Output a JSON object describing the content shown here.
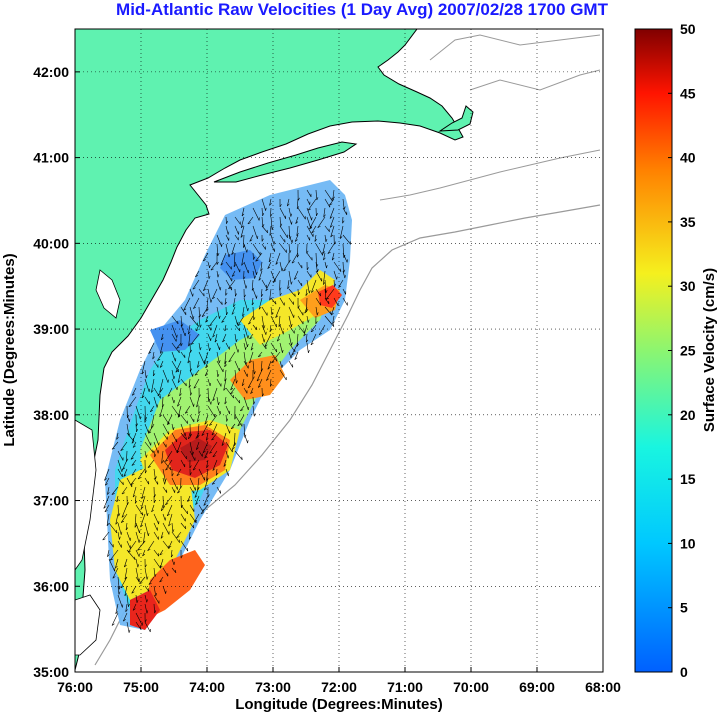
{
  "title": "Mid-Atlantic Raw Velocities (1 Day Avg) 2007/02/28 1700 GMT",
  "map": {
    "xlabel": "Longitude (Degrees:Minutes)",
    "ylabel": "Latitude (Degrees:Minutes)",
    "lon_range": [
      -76,
      -68
    ],
    "lat_range": [
      35,
      42.5
    ],
    "lon_ticks": [
      "76:00",
      "75:00",
      "74:00",
      "73:00",
      "72:00",
      "71:00",
      "70:00",
      "69:00",
      "68:00"
    ],
    "lat_ticks": [
      "35:00",
      "36:00",
      "37:00",
      "38:00",
      "39:00",
      "40:00",
      "41:00",
      "42:00"
    ],
    "land_color": "#5ff2b0",
    "grid": true
  },
  "colorbar": {
    "label": "Surface Velocity (cm/s)",
    "range": [
      0,
      50
    ],
    "ticks": [
      "0",
      "5",
      "10",
      "15",
      "20",
      "25",
      "30",
      "35",
      "40",
      "45",
      "50"
    ],
    "colormap": "jet"
  }
}
